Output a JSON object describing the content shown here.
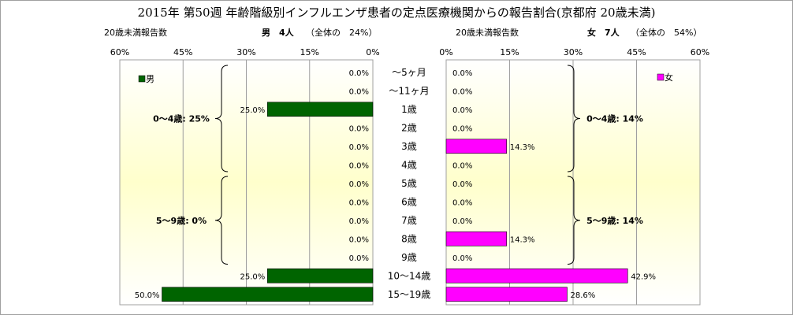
{
  "title": "2015年 第50週 年齢階級別インフルエンザ患者の定点医療機関からの報告割合(京都府 20歳未満)",
  "left_header": {
    "caption": "20歳未満報告数",
    "sex_count": "男　4人",
    "share": "（全体の　24%）"
  },
  "right_header": {
    "caption": "20歳未満報告数",
    "sex_count": "女　7人",
    "share": "（全体の　54%）"
  },
  "colors": {
    "male": "#006400",
    "female": "#ff00ff",
    "plot_top": "#ffffff",
    "plot_mid": "#ffffcc"
  },
  "chart_data": {
    "type": "bar",
    "categories": [
      "～5ヶ月",
      "～11ヶ月",
      "1歳",
      "2歳",
      "3歳",
      "4歳",
      "5歳",
      "6歳",
      "7歳",
      "8歳",
      "9歳",
      "10～14歳",
      "15～19歳"
    ],
    "xlim": [
      0,
      60
    ],
    "ticks": [
      0,
      15,
      30,
      45,
      60
    ],
    "tick_labels_left": [
      "0%",
      "15%",
      "30%",
      "45%",
      "60%"
    ],
    "tick_labels_right": [
      "0%",
      "15%",
      "30%",
      "45%",
      "60%"
    ],
    "grid": true,
    "series": [
      {
        "name": "男",
        "side": "left",
        "values": [
          0.0,
          0.0,
          25.0,
          0.0,
          0.0,
          0.0,
          0.0,
          0.0,
          0.0,
          0.0,
          0.0,
          25.0,
          50.0
        ],
        "labels": [
          "0.0%",
          "0.0%",
          "25.0%",
          "0.0%",
          "0.0%",
          "0.0%",
          "0.0%",
          "0.0%",
          "0.0%",
          "0.0%",
          "0.0%",
          "25.0%",
          "50.0%"
        ]
      },
      {
        "name": "女",
        "side": "right",
        "values": [
          0.0,
          0.0,
          0.0,
          0.0,
          14.3,
          0.0,
          0.0,
          0.0,
          0.0,
          14.3,
          0.0,
          42.9,
          28.6
        ],
        "labels": [
          "0.0%",
          "0.0%",
          "0.0%",
          "0.0%",
          "14.3%",
          "0.0%",
          "0.0%",
          "0.0%",
          "0.0%",
          "14.3%",
          "0.0%",
          "42.9%",
          "28.6%"
        ]
      }
    ],
    "groups": {
      "left": [
        {
          "label": "0～4歳: 25%",
          "from": 0,
          "to": 5
        },
        {
          "label": "5～9歳: 0%",
          "from": 6,
          "to": 10
        }
      ],
      "right": [
        {
          "label": "0～4歳: 14%",
          "from": 0,
          "to": 5
        },
        {
          "label": "5～9歳: 14%",
          "from": 6,
          "to": 10
        }
      ]
    }
  }
}
